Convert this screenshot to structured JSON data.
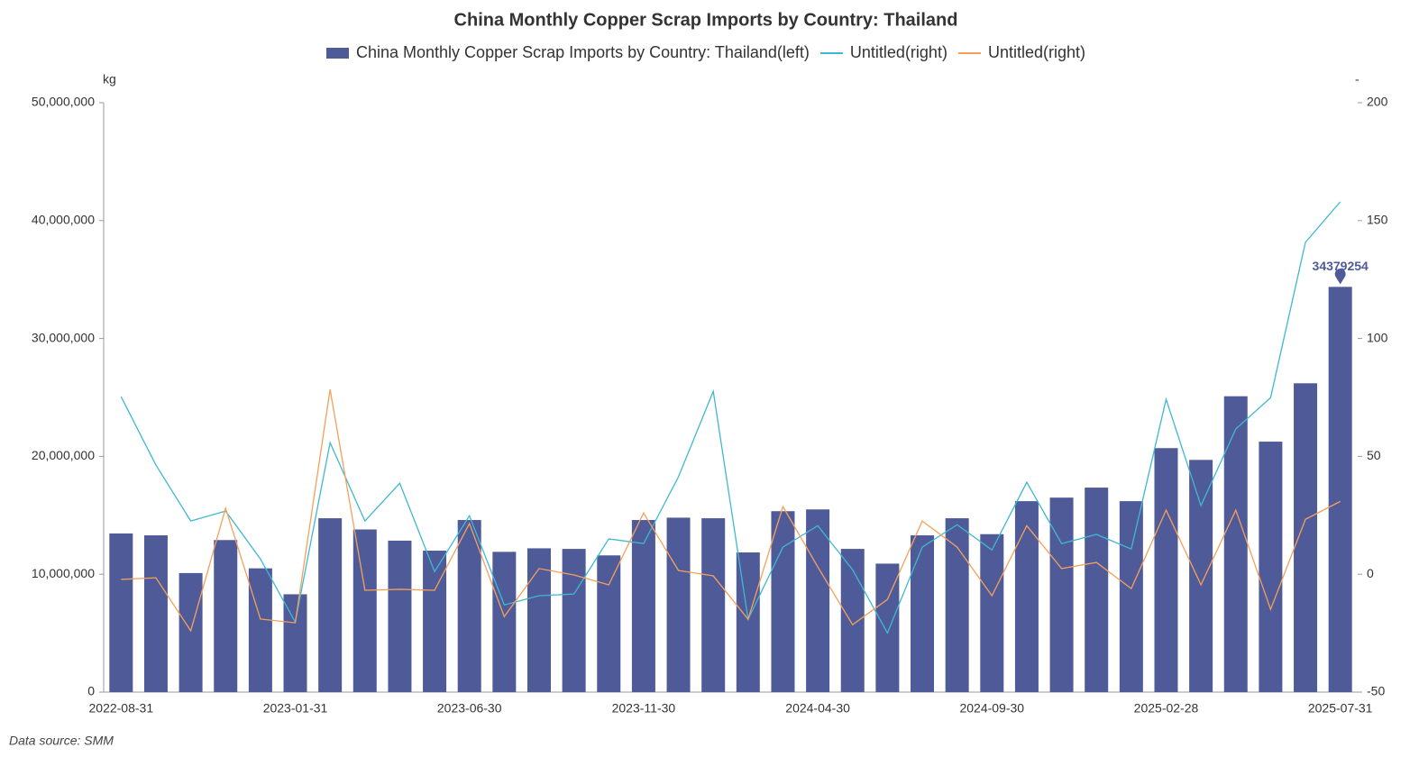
{
  "chart_data": {
    "type": "bar_line",
    "title": "China Monthly Copper Scrap Imports by Country: Thailand",
    "y_unit": "kg",
    "y2_unit": "-",
    "source": "Data source:  SMM",
    "categories": [
      "2022-08-31",
      null,
      null,
      null,
      null,
      "2023-01-31",
      null,
      null,
      null,
      null,
      "2023-06-30",
      null,
      null,
      null,
      null,
      "2023-11-30",
      null,
      null,
      null,
      null,
      "2024-04-30",
      null,
      null,
      null,
      null,
      "2024-09-30",
      null,
      null,
      null,
      null,
      "2025-02-28",
      null,
      null,
      null,
      null,
      "2025-07-31"
    ],
    "series": [
      {
        "name": "China Monthly Copper Scrap Imports by Country: Thailand(left)",
        "type": "bar",
        "color": "#4f5b99",
        "axis": "y",
        "values": [
          13460000,
          13300000,
          10100000,
          12900000,
          10500000,
          8300000,
          14750000,
          13800000,
          12850000,
          12000000,
          14600000,
          11900000,
          12200000,
          12150000,
          11600000,
          14600000,
          14800000,
          14750000,
          11850000,
          15350000,
          15500000,
          12150000,
          10900000,
          13300000,
          14750000,
          13400000,
          16200000,
          16500000,
          17350000,
          16200000,
          20700000,
          19700000,
          25100000,
          21250000,
          26200000,
          34379254
        ]
      },
      {
        "name": "Untitled(right)",
        "type": "line",
        "color": "#3fb8d0",
        "axis": "y2",
        "values": [
          75.3,
          46.3,
          22.6,
          26.8,
          6.5,
          -20.3,
          55.8,
          22.6,
          38.6,
          1.1,
          24.8,
          -13.0,
          -9.1,
          -8.4,
          15,
          13,
          41.3,
          77.6,
          -19.1,
          11.5,
          20.6,
          1.9,
          -24.9,
          11.5,
          21,
          10.3,
          39,
          13,
          16.9,
          10.7,
          74.2,
          29.1,
          61.6,
          74.9,
          140.8,
          158
        ]
      },
      {
        "name": "Untitled(right)",
        "type": "line",
        "color": "#f5a05a",
        "axis": "y2",
        "values": [
          -2.2,
          -1.5,
          -24,
          28,
          -19,
          -20.6,
          78.4,
          -6.8,
          -6.4,
          -6.8,
          21.5,
          -18,
          2.4,
          -0.3,
          -4.5,
          26,
          1.6,
          -0.7,
          -19.1,
          28.7,
          3.1,
          -21.4,
          -10.7,
          22.6,
          11.5,
          -9.1,
          20.6,
          2.4,
          5,
          -6.1,
          27.2,
          -4.5,
          27.2,
          -14.9,
          23.3,
          30.9
        ]
      }
    ],
    "ylim": [
      0,
      50000000
    ],
    "yticks": [
      0,
      {
        "value": 10000000,
        "label": "10,000,000"
      },
      {
        "value": 20000000,
        "label": "20,000,000"
      },
      {
        "value": 30000000,
        "label": "30,000,000"
      },
      {
        "value": 40000000,
        "label": "40,000,000"
      },
      {
        "value": 50000000,
        "label": "50,000,000"
      }
    ],
    "y2lim": [
      -50,
      200
    ],
    "y2ticks": [
      -50,
      0,
      50,
      100,
      150,
      200
    ],
    "legend": "top"
  }
}
